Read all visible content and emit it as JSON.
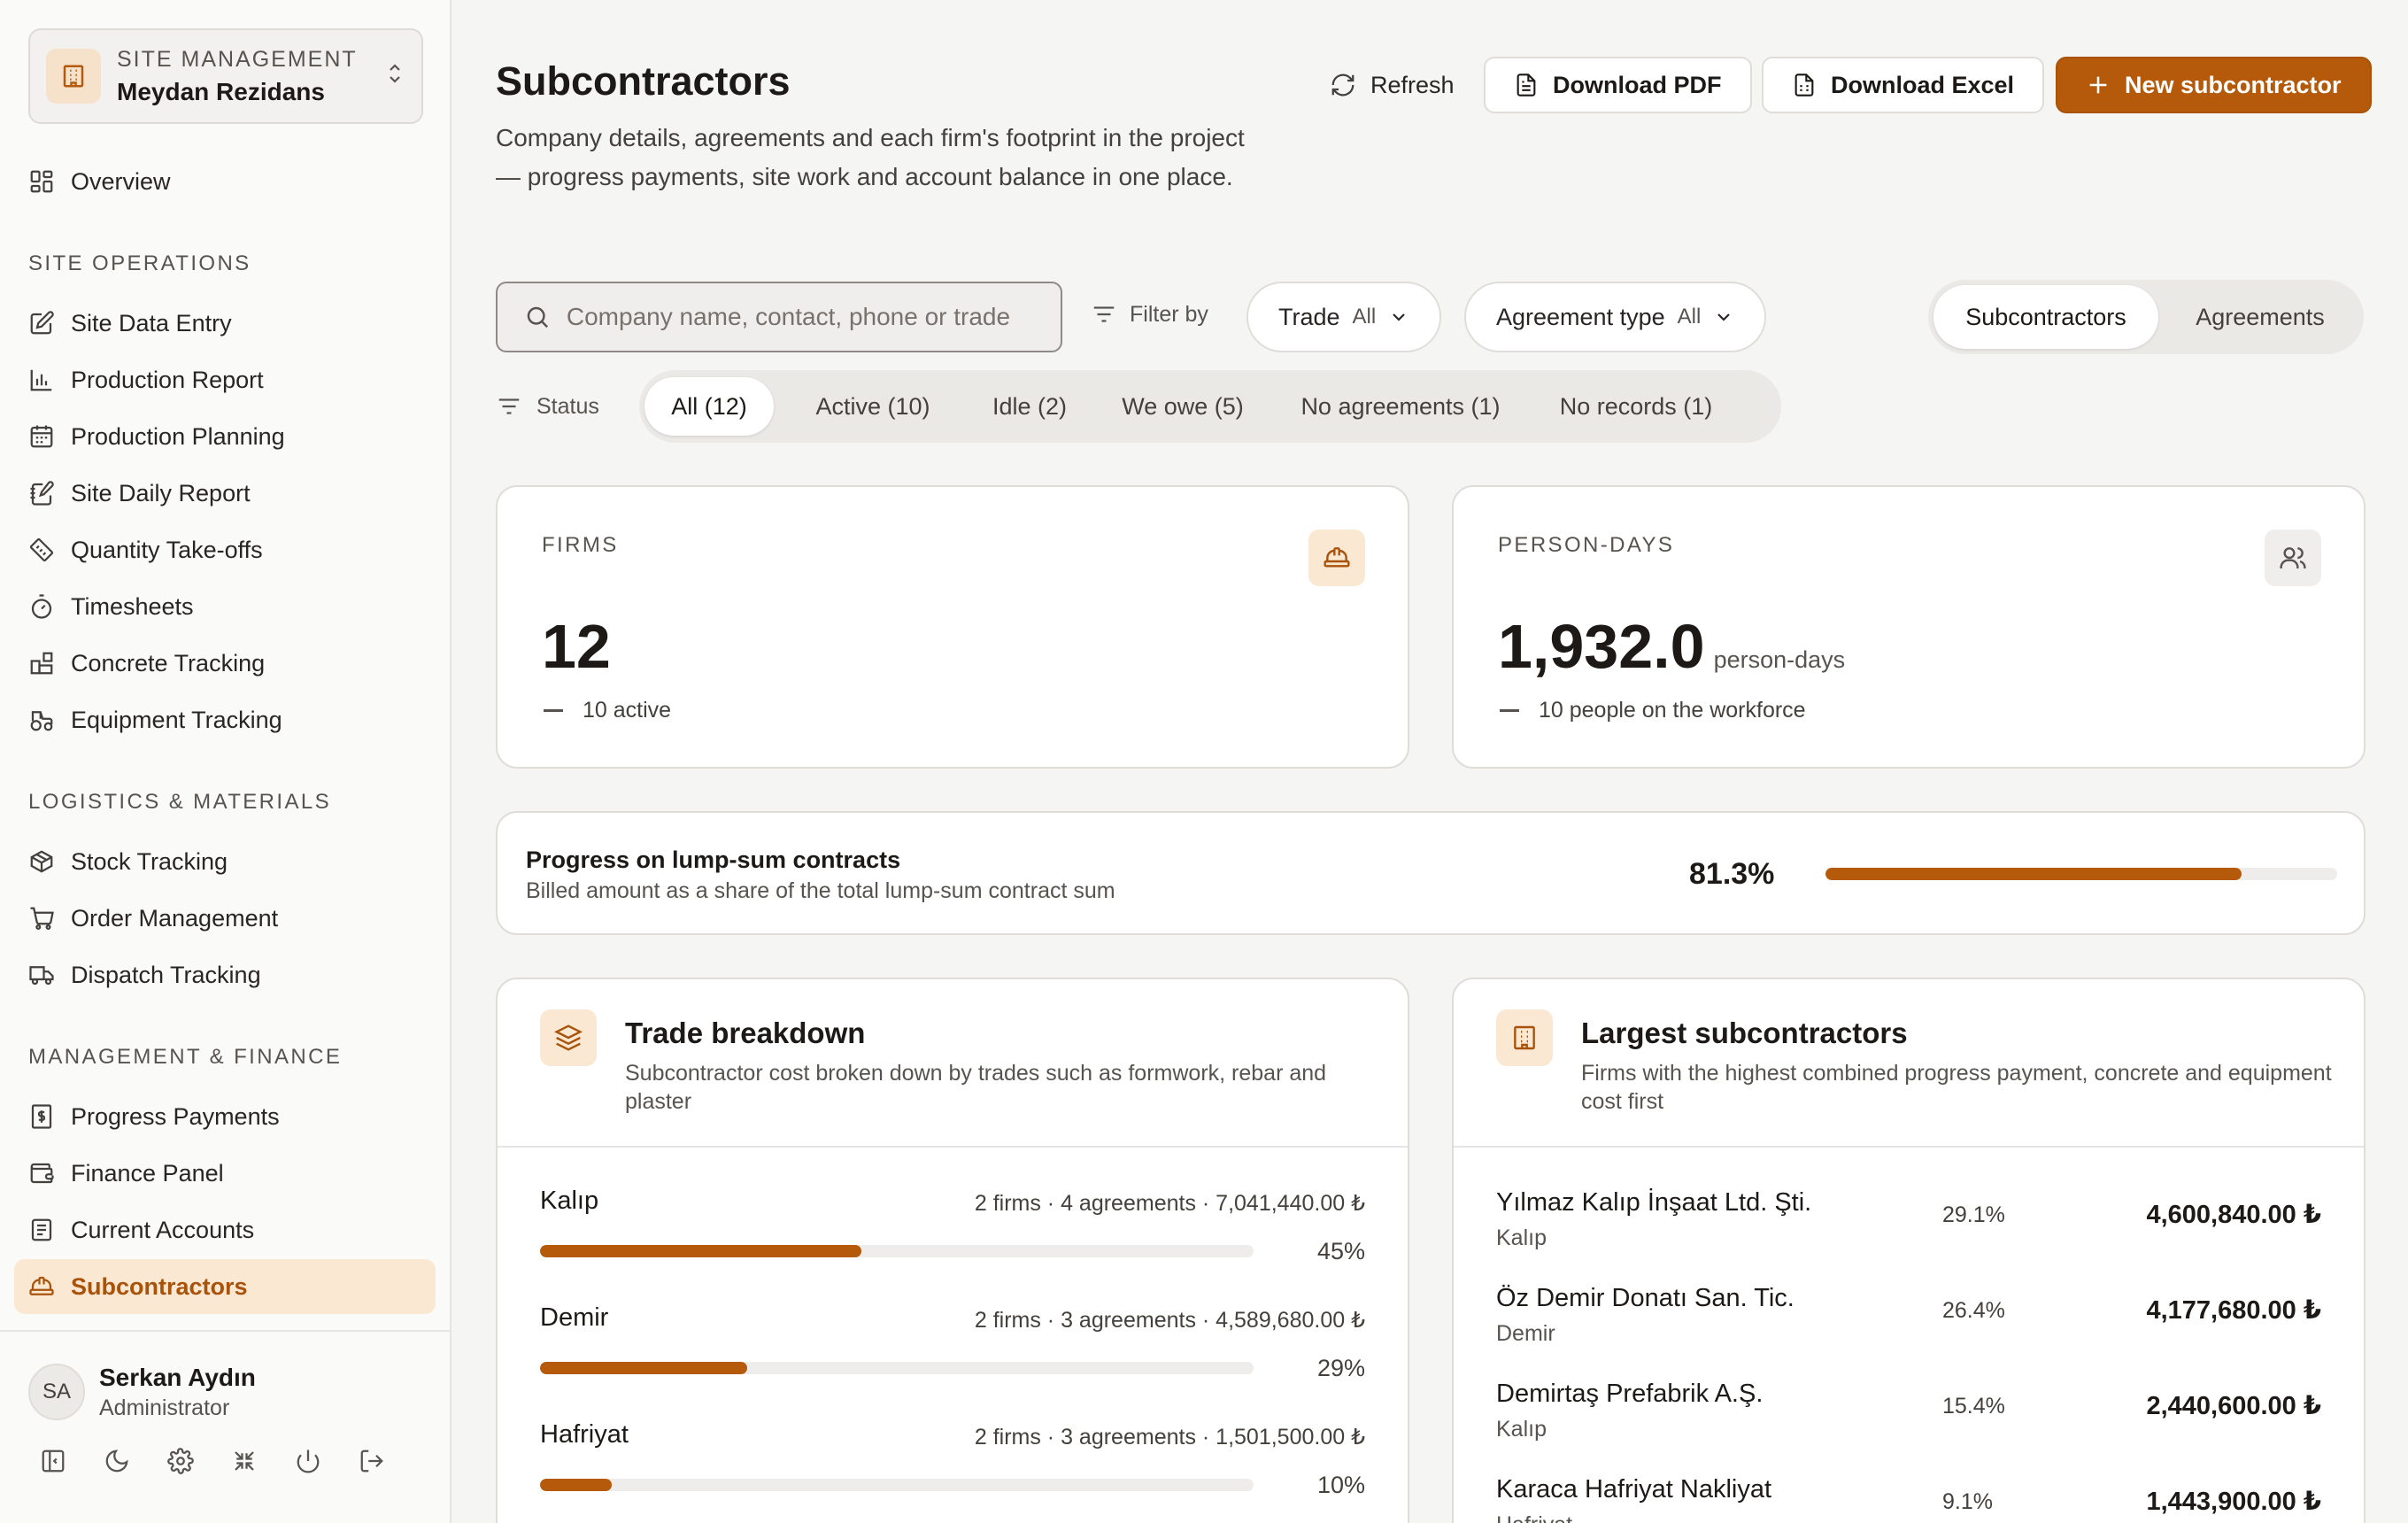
{
  "sidebar": {
    "site_caption": "SITE MANAGEMENT",
    "site_name": "Meydan Rezidans",
    "overview": "Overview",
    "sections": {
      "site_ops": "SITE OPERATIONS",
      "logistics": "LOGISTICS & MATERIALS",
      "management": "MANAGEMENT & FINANCE"
    },
    "site_ops_items": [
      "Site Data Entry",
      "Production Report",
      "Production Planning",
      "Site Daily Report",
      "Quantity Take-offs",
      "Timesheets",
      "Concrete Tracking",
      "Equipment Tracking"
    ],
    "logistics_items": [
      "Stock Tracking",
      "Order Management",
      "Dispatch Tracking"
    ],
    "management_items": [
      "Progress Payments",
      "Finance Panel",
      "Current Accounts",
      "Subcontractors"
    ],
    "user": {
      "initials": "SA",
      "name": "Serkan Aydın",
      "role": "Administrator"
    }
  },
  "header": {
    "title": "Subcontractors",
    "description": "Company details, agreements and each firm's footprint in the project — progress payments, site work and account balance in one place.",
    "refresh": "Refresh",
    "download_pdf": "Download PDF",
    "download_excel": "Download Excel",
    "new_subcontractor": "New subcontractor"
  },
  "filters": {
    "search_placeholder": "Company name, contact, phone or trade",
    "filter_by": "Filter by",
    "trade_label": "Trade",
    "trade_value": "All",
    "agreement_label": "Agreement type",
    "agreement_value": "All",
    "view_tabs": [
      "Subcontractors",
      "Agreements"
    ],
    "status_label": "Status",
    "status_pills": [
      "All (12)",
      "Active (10)",
      "Idle (2)",
      "We owe (5)",
      "No agreements (1)",
      "No records (1)"
    ]
  },
  "kpis": {
    "firms": {
      "caption": "FIRMS",
      "value": "12",
      "sub": "10 active"
    },
    "person_days": {
      "caption": "PERSON-DAYS",
      "value": "1,932.0",
      "unit": "person-days",
      "sub": "10 people on the workforce"
    }
  },
  "lump_sum": {
    "title": "Progress on lump-sum contracts",
    "subtitle": "Billed amount as a share of the total lump-sum contract sum",
    "value_label": "81.3%",
    "fraction": 0.813
  },
  "trade_breakdown": {
    "title": "Trade breakdown",
    "subtitle": "Subcontractor cost broken down by trades such as formwork, rebar and plaster",
    "rows": [
      {
        "name": "Kalıp",
        "meta": "2 firms · 4 agreements · 7,041,440.00 ₺",
        "pct": "45%",
        "fraction": 0.45
      },
      {
        "name": "Demir",
        "meta": "2 firms · 3 agreements · 4,589,680.00 ₺",
        "pct": "29%",
        "fraction": 0.29
      },
      {
        "name": "Hafriyat",
        "meta": "2 firms · 3 agreements · 1,501,500.00 ₺",
        "pct": "10%",
        "fraction": 0.1
      }
    ]
  },
  "largest": {
    "title": "Largest subcontractors",
    "subtitle": "Firms with the highest combined progress payment, concrete and equipment cost first",
    "rows": [
      {
        "name": "Yılmaz Kalıp İnşaat Ltd. Şti.",
        "trade": "Kalıp",
        "share": "29.1%",
        "amount": "4,600,840.00 ₺"
      },
      {
        "name": "Öz Demir Donatı San. Tic.",
        "trade": "Demir",
        "share": "26.4%",
        "amount": "4,177,680.00 ₺"
      },
      {
        "name": "Demirtaş Prefabrik A.Ş.",
        "trade": "Kalıp",
        "share": "15.4%",
        "amount": "2,440,600.00 ₺"
      },
      {
        "name": "Karaca Hafriyat Nakliyat",
        "trade": "Hafriyat",
        "share": "9.1%",
        "amount": "1,443,900.00 ₺"
      }
    ]
  },
  "colors": {
    "accent": "#b45a0a",
    "accent_soft": "#fbe8d3",
    "background": "#f5f5f4"
  }
}
